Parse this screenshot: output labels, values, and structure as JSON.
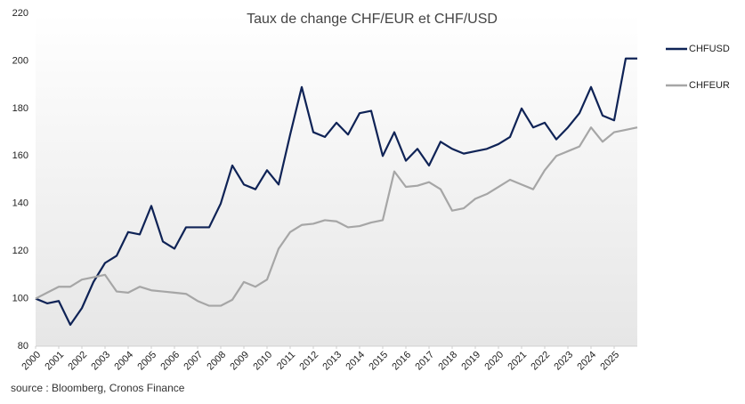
{
  "chart_data": {
    "type": "line",
    "title": "Taux de change CHF/EUR et CHF/USD",
    "source": "source : Bloomberg, Cronos Finance",
    "x": [
      2000,
      2000.5,
      2001,
      2001.5,
      2002,
      2002.5,
      2003,
      2003.5,
      2004,
      2004.5,
      2005,
      2005.5,
      2006,
      2006.5,
      2007,
      2007.5,
      2008,
      2008.5,
      2009,
      2009.5,
      2010,
      2010.5,
      2011,
      2011.5,
      2012,
      2012.5,
      2013,
      2013.5,
      2014,
      2014.5,
      2015,
      2015.5,
      2016,
      2016.5,
      2017,
      2017.5,
      2018,
      2018.5,
      2019,
      2019.5,
      2020,
      2020.5,
      2021,
      2021.5,
      2022,
      2022.5,
      2023,
      2023.5,
      2024,
      2024.5,
      2025,
      2025.5,
      2026
    ],
    "series": [
      {
        "name": "CHFUSD",
        "color": "#0f2356",
        "values": [
          100,
          98,
          99,
          89,
          96,
          107,
          115,
          118,
          128,
          127,
          139,
          124,
          121,
          130,
          130,
          130,
          140,
          156,
          148,
          146,
          154,
          148,
          169,
          189,
          170,
          168,
          174,
          169,
          178,
          179,
          160,
          170,
          158,
          163,
          156,
          166,
          163,
          161,
          162,
          163,
          165,
          168,
          180,
          172,
          174,
          167,
          172,
          178,
          189,
          177,
          175,
          201,
          201
        ]
      },
      {
        "name": "CHFEUR",
        "color": "#a6a6a6",
        "values": [
          100,
          102.5,
          105,
          105,
          108,
          109,
          110,
          103,
          102.5,
          105,
          103.5,
          103,
          102.5,
          102,
          99,
          97,
          97,
          99.5,
          107,
          105,
          108,
          121,
          128,
          131,
          131.5,
          133,
          132.5,
          130,
          130.5,
          132,
          133,
          153.5,
          147,
          147.5,
          149,
          146,
          137,
          138,
          142,
          144,
          147,
          150,
          148,
          146,
          154,
          160,
          162,
          164,
          172,
          166,
          170,
          171,
          172
        ]
      }
    ],
    "xlim": [
      2000,
      2026
    ],
    "xticks": [
      2000,
      2001,
      2002,
      2003,
      2004,
      2005,
      2006,
      2007,
      2008,
      2009,
      2010,
      2011,
      2012,
      2013,
      2014,
      2015,
      2016,
      2017,
      2018,
      2019,
      2020,
      2021,
      2022,
      2023,
      2024,
      2025
    ],
    "ylim": [
      80,
      220
    ],
    "yticks": [
      80,
      100,
      120,
      140,
      160,
      180,
      200,
      220
    ],
    "grid": false,
    "legend": "right"
  }
}
